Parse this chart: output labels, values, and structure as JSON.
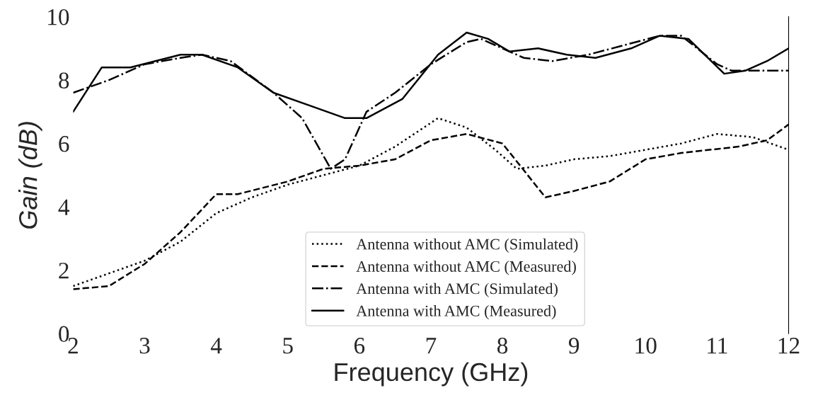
{
  "chart_data": {
    "type": "line",
    "xlabel": "Frequency (GHz)",
    "ylabel": "Gain (dB)",
    "xlim": [
      2,
      12
    ],
    "ylim": [
      0,
      10
    ],
    "xticks": [
      2,
      3,
      4,
      5,
      6,
      7,
      8,
      9,
      10,
      11,
      12
    ],
    "yticks": [
      0,
      2,
      4,
      6,
      8,
      10
    ],
    "grid": false,
    "legend": "bottom",
    "marker": "none",
    "series": [
      {
        "name": "Antenna without AMC (Simulated)",
        "color": "#000000",
        "line_style": "dotted",
        "x": [
          2,
          2.5,
          3,
          3.5,
          4,
          4.5,
          5,
          5.5,
          6,
          6.5,
          7.1,
          7.5,
          7.9,
          8.2,
          8.6,
          9,
          9.5,
          10,
          10.5,
          11,
          11.5,
          12
        ],
        "values": [
          1.5,
          1.9,
          2.3,
          2.9,
          3.8,
          4.3,
          4.7,
          5.0,
          5.3,
          5.9,
          6.8,
          6.5,
          5.8,
          5.2,
          5.3,
          5.5,
          5.6,
          5.8,
          6.0,
          6.3,
          6.2,
          5.8
        ]
      },
      {
        "name": "Antenna without AMC (Measured)",
        "color": "#000000",
        "line_style": "dashed",
        "x": [
          2,
          2.5,
          3,
          3.5,
          4,
          4.3,
          5,
          5.5,
          6,
          6.5,
          7,
          7.5,
          8,
          8.6,
          9,
          9.5,
          10,
          10.5,
          11.3,
          11.7,
          12
        ],
        "values": [
          1.4,
          1.5,
          2.2,
          3.2,
          4.4,
          4.4,
          4.8,
          5.2,
          5.3,
          5.5,
          6.1,
          6.3,
          6.0,
          4.3,
          4.5,
          4.8,
          5.5,
          5.7,
          5.9,
          6.1,
          6.6
        ]
      },
      {
        "name": "Antenna with AMC (Simulated)",
        "color": "#000000",
        "line_style": "dashdot",
        "x": [
          2,
          2.5,
          3,
          3.5,
          3.8,
          4.2,
          4.8,
          5.2,
          5.6,
          5.8,
          6.1,
          6.5,
          7,
          7.5,
          7.7,
          8.3,
          8.7,
          9.2,
          9.7,
          10.2,
          10.5,
          11,
          11.2,
          11.5,
          12
        ],
        "values": [
          7.6,
          8.0,
          8.5,
          8.7,
          8.8,
          8.6,
          7.6,
          6.8,
          5.2,
          5.5,
          7.0,
          7.6,
          8.5,
          9.2,
          9.3,
          8.7,
          8.6,
          8.8,
          9.1,
          9.4,
          9.4,
          8.5,
          8.3,
          8.3,
          8.3
        ]
      },
      {
        "name": "Antenna with AMC (Measured)",
        "color": "#000000",
        "line_style": "solid",
        "x": [
          2,
          2.4,
          2.8,
          3.5,
          3.8,
          4.3,
          4.8,
          5.3,
          5.8,
          6.1,
          6.6,
          7.1,
          7.5,
          7.8,
          8.1,
          8.5,
          8.9,
          9.3,
          9.8,
          10.2,
          10.6,
          11.1,
          11.4,
          11.7,
          12
        ],
        "values": [
          7.0,
          8.4,
          8.4,
          8.8,
          8.8,
          8.4,
          7.6,
          7.2,
          6.8,
          6.8,
          7.4,
          8.8,
          9.5,
          9.3,
          8.9,
          9.0,
          8.8,
          8.7,
          9.0,
          9.4,
          9.3,
          8.2,
          8.3,
          8.6,
          9.0
        ]
      }
    ]
  }
}
